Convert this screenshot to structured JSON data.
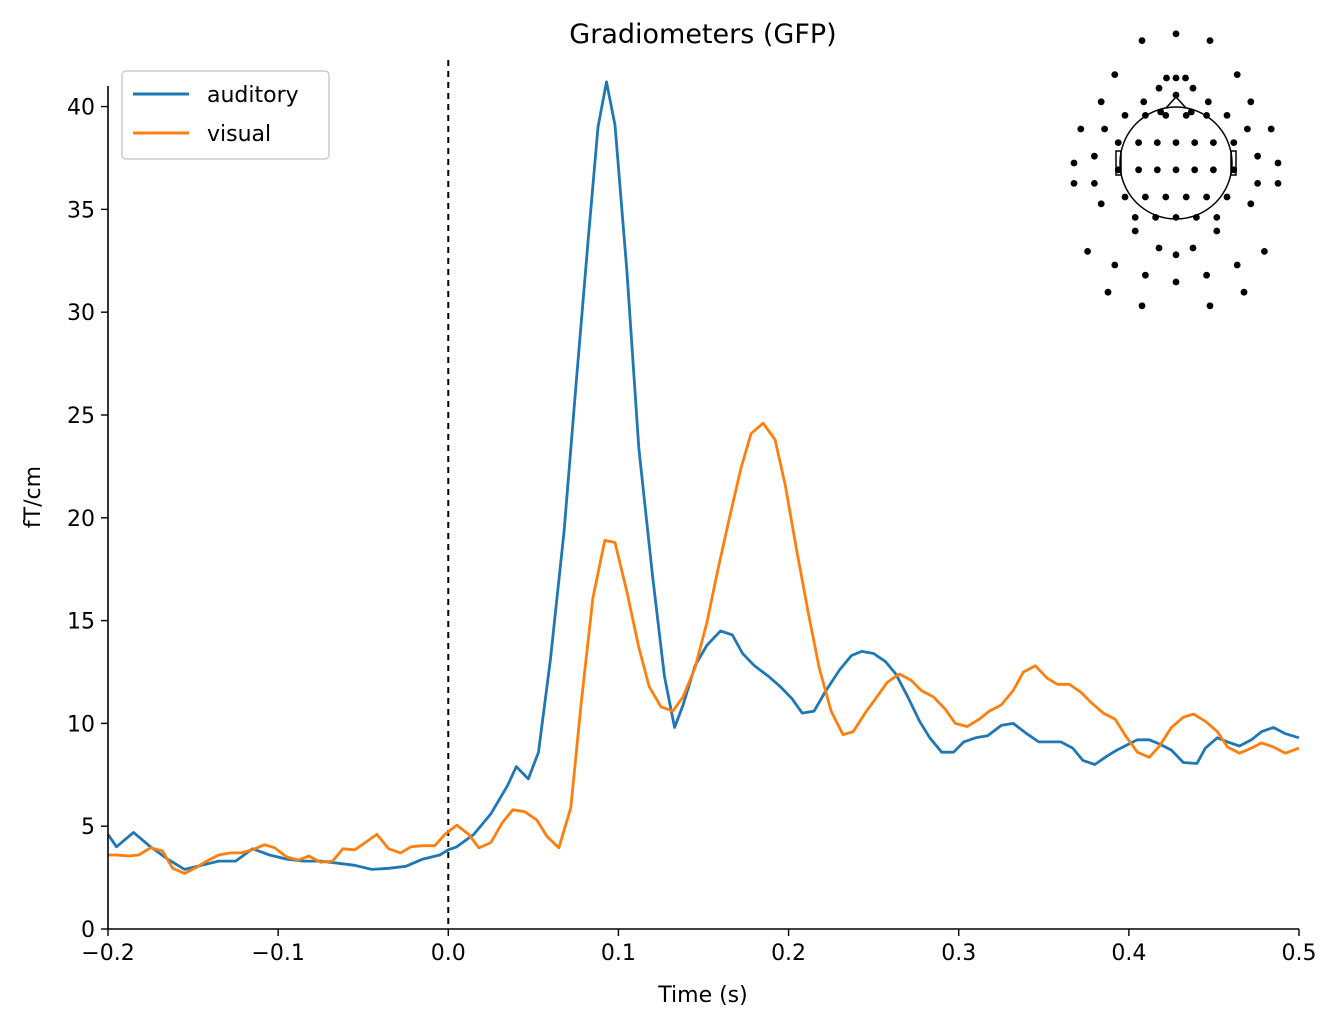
{
  "chart_data": {
    "type": "line",
    "title": "Gradiometers (GFP)",
    "xlabel": "Time (s)",
    "ylabel": "fT/cm",
    "xlim": [
      -0.2,
      0.5
    ],
    "ylim": [
      0,
      41
    ],
    "xticks": [
      -0.2,
      -0.1,
      0.0,
      0.1,
      0.2,
      0.3,
      0.4,
      0.5
    ],
    "xtick_labels": [
      "−0.2",
      "−0.1",
      "0.0",
      "0.1",
      "0.2",
      "0.3",
      "0.4",
      "0.5"
    ],
    "yticks": [
      0,
      5,
      10,
      15,
      20,
      25,
      30,
      35,
      40
    ],
    "ytick_labels": [
      "0",
      "5",
      "10",
      "15",
      "20",
      "25",
      "30",
      "35",
      "40"
    ],
    "grid": false,
    "legend": "top-left",
    "stimulus_onset": 0.0,
    "series": [
      {
        "name": "auditory",
        "color": "#1f77b4",
        "x": [
          -0.2,
          -0.195,
          -0.185,
          -0.175,
          -0.165,
          -0.155,
          -0.145,
          -0.135,
          -0.125,
          -0.115,
          -0.105,
          -0.095,
          -0.085,
          -0.075,
          -0.065,
          -0.055,
          -0.045,
          -0.035,
          -0.025,
          -0.015,
          -0.005,
          0.0,
          0.005,
          0.015,
          0.025,
          0.035,
          0.04,
          0.047,
          0.053,
          0.06,
          0.068,
          0.075,
          0.082,
          0.088,
          0.093,
          0.098,
          0.105,
          0.112,
          0.12,
          0.127,
          0.133,
          0.138,
          0.145,
          0.152,
          0.16,
          0.167,
          0.173,
          0.18,
          0.188,
          0.195,
          0.202,
          0.208,
          0.215,
          0.222,
          0.23,
          0.237,
          0.243,
          0.25,
          0.257,
          0.263,
          0.27,
          0.277,
          0.283,
          0.29,
          0.297,
          0.303,
          0.31,
          0.317,
          0.325,
          0.332,
          0.34,
          0.347,
          0.355,
          0.36,
          0.367,
          0.373,
          0.38,
          0.387,
          0.393,
          0.4,
          0.405,
          0.412,
          0.418,
          0.425,
          0.432,
          0.44,
          0.445,
          0.452,
          0.458,
          0.465,
          0.472,
          0.478,
          0.485,
          0.492,
          0.5
        ],
        "values": [
          4.6,
          4.0,
          4.7,
          4.0,
          3.4,
          2.9,
          3.1,
          3.3,
          3.3,
          3.9,
          3.6,
          3.4,
          3.3,
          3.3,
          3.2,
          3.1,
          2.9,
          2.95,
          3.05,
          3.4,
          3.6,
          3.85,
          4.0,
          4.6,
          5.6,
          7.0,
          7.9,
          7.3,
          8.6,
          13.1,
          19.3,
          26.4,
          33.3,
          39.0,
          41.2,
          39.1,
          32.0,
          23.4,
          17.2,
          12.3,
          9.8,
          10.9,
          12.8,
          13.8,
          14.5,
          14.3,
          13.4,
          12.8,
          12.3,
          11.8,
          11.2,
          10.5,
          10.6,
          11.6,
          12.6,
          13.3,
          13.5,
          13.4,
          13.0,
          12.4,
          11.3,
          10.1,
          9.3,
          8.6,
          8.6,
          9.1,
          9.3,
          9.4,
          9.9,
          10.0,
          9.5,
          9.1,
          9.1,
          9.1,
          8.8,
          8.2,
          8.0,
          8.4,
          8.7,
          9.0,
          9.2,
          9.2,
          9.0,
          8.7,
          8.1,
          8.05,
          8.8,
          9.3,
          9.1,
          8.9,
          9.2,
          9.6,
          9.8,
          9.5,
          9.3
        ]
      },
      {
        "name": "visual",
        "color": "#ff7f0e",
        "x": [
          -0.2,
          -0.195,
          -0.188,
          -0.182,
          -0.175,
          -0.168,
          -0.162,
          -0.155,
          -0.148,
          -0.142,
          -0.135,
          -0.128,
          -0.122,
          -0.115,
          -0.108,
          -0.102,
          -0.095,
          -0.088,
          -0.082,
          -0.075,
          -0.068,
          -0.062,
          -0.055,
          -0.048,
          -0.042,
          -0.035,
          -0.028,
          -0.022,
          -0.015,
          -0.008,
          -0.002,
          0.005,
          0.012,
          0.018,
          0.025,
          0.032,
          0.038,
          0.045,
          0.052,
          0.058,
          0.065,
          0.072,
          0.078,
          0.085,
          0.092,
          0.098,
          0.105,
          0.112,
          0.118,
          0.125,
          0.132,
          0.138,
          0.145,
          0.152,
          0.158,
          0.165,
          0.172,
          0.178,
          0.185,
          0.192,
          0.198,
          0.205,
          0.212,
          0.218,
          0.225,
          0.232,
          0.238,
          0.245,
          0.252,
          0.258,
          0.265,
          0.272,
          0.278,
          0.285,
          0.292,
          0.298,
          0.305,
          0.312,
          0.318,
          0.325,
          0.332,
          0.338,
          0.345,
          0.352,
          0.358,
          0.365,
          0.372,
          0.378,
          0.385,
          0.392,
          0.398,
          0.405,
          0.412,
          0.418,
          0.425,
          0.432,
          0.438,
          0.445,
          0.452,
          0.458,
          0.465,
          0.472,
          0.478,
          0.485,
          0.492,
          0.5
        ],
        "values": [
          3.6,
          3.6,
          3.55,
          3.6,
          3.95,
          3.8,
          2.95,
          2.7,
          3.0,
          3.3,
          3.6,
          3.7,
          3.7,
          3.85,
          4.1,
          3.95,
          3.5,
          3.35,
          3.55,
          3.25,
          3.3,
          3.9,
          3.85,
          4.25,
          4.6,
          3.9,
          3.7,
          4.0,
          4.05,
          4.05,
          4.6,
          5.05,
          4.6,
          3.95,
          4.2,
          5.2,
          5.8,
          5.7,
          5.3,
          4.5,
          3.95,
          5.9,
          10.9,
          16.1,
          18.9,
          18.8,
          16.4,
          13.7,
          11.8,
          10.8,
          10.6,
          11.3,
          12.7,
          14.9,
          17.3,
          19.9,
          22.4,
          24.1,
          24.6,
          23.8,
          21.6,
          18.3,
          15.2,
          12.7,
          10.6,
          9.45,
          9.6,
          10.5,
          11.3,
          12.0,
          12.4,
          12.1,
          11.6,
          11.3,
          10.7,
          10.0,
          9.85,
          10.2,
          10.6,
          10.9,
          11.6,
          12.5,
          12.8,
          12.2,
          11.9,
          11.9,
          11.5,
          11.0,
          10.5,
          10.2,
          9.4,
          8.6,
          8.35,
          8.9,
          9.8,
          10.3,
          10.45,
          10.1,
          9.6,
          8.85,
          8.55,
          8.8,
          9.05,
          8.85,
          8.55,
          8.8
        ]
      }
    ]
  },
  "sensor_inset": {
    "icon": "sensor-layout-head-icon",
    "sensors": [
      [
        -0.095,
        0.18
      ],
      [
        -0.045,
        0.15
      ],
      [
        0.0,
        0.2
      ],
      [
        0.045,
        0.15
      ],
      [
        0.095,
        0.18
      ],
      [
        -0.05,
        0.22
      ],
      [
        0.05,
        0.22
      ],
      [
        -0.028,
        0.25
      ],
      [
        0.028,
        0.25
      ],
      [
        0.0,
        0.25
      ],
      [
        -0.22,
        -0.12
      ],
      [
        -0.3,
        -0.06
      ],
      [
        -0.3,
        0.0
      ],
      [
        -0.28,
        0.1
      ],
      [
        -0.22,
        0.18
      ],
      [
        -0.18,
        0.26
      ],
      [
        -0.1,
        0.36
      ],
      [
        0.0,
        0.38
      ],
      [
        0.1,
        0.36
      ],
      [
        0.18,
        0.26
      ],
      [
        0.22,
        0.18
      ],
      [
        0.28,
        0.1
      ],
      [
        0.3,
        0.0
      ],
      [
        0.3,
        -0.06
      ],
      [
        0.22,
        -0.12
      ],
      [
        -0.12,
        -0.2
      ],
      [
        -0.05,
        -0.25
      ],
      [
        0.0,
        -0.27
      ],
      [
        0.05,
        -0.25
      ],
      [
        0.12,
        -0.2
      ],
      [
        -0.26,
        -0.26
      ],
      [
        -0.18,
        -0.3
      ],
      [
        -0.09,
        -0.33
      ],
      [
        0.0,
        -0.35
      ],
      [
        0.09,
        -0.33
      ],
      [
        0.18,
        -0.3
      ],
      [
        0.26,
        -0.26
      ],
      [
        -0.2,
        -0.38
      ],
      [
        -0.1,
        -0.42
      ],
      [
        0.1,
        -0.42
      ],
      [
        0.2,
        -0.38
      ],
      [
        -0.17,
        0.06
      ],
      [
        -0.11,
        0.06
      ],
      [
        -0.055,
        0.06
      ],
      [
        0.0,
        0.06
      ],
      [
        0.055,
        0.06
      ],
      [
        0.11,
        0.06
      ],
      [
        0.17,
        0.06
      ],
      [
        -0.17,
        -0.02
      ],
      [
        -0.11,
        -0.02
      ],
      [
        -0.055,
        -0.02
      ],
      [
        0.0,
        -0.02
      ],
      [
        0.055,
        -0.02
      ],
      [
        0.11,
        -0.02
      ],
      [
        0.17,
        -0.02
      ],
      [
        -0.15,
        -0.1
      ],
      [
        -0.09,
        -0.1
      ],
      [
        -0.03,
        -0.1
      ],
      [
        0.03,
        -0.1
      ],
      [
        0.09,
        -0.1
      ],
      [
        0.15,
        -0.1
      ],
      [
        -0.15,
        0.14
      ],
      [
        -0.09,
        0.14
      ],
      [
        -0.03,
        0.14
      ],
      [
        0.03,
        0.14
      ],
      [
        0.09,
        0.14
      ],
      [
        0.15,
        0.14
      ],
      [
        -0.12,
        -0.16
      ],
      [
        -0.06,
        -0.16
      ],
      [
        0.0,
        -0.16
      ],
      [
        0.06,
        -0.16
      ],
      [
        0.12,
        -0.16
      ],
      [
        -0.24,
        0.02
      ],
      [
        0.24,
        0.02
      ],
      [
        -0.24,
        -0.06
      ],
      [
        0.24,
        -0.06
      ],
      [
        -0.21,
        0.1
      ],
      [
        0.21,
        0.1
      ]
    ]
  }
}
